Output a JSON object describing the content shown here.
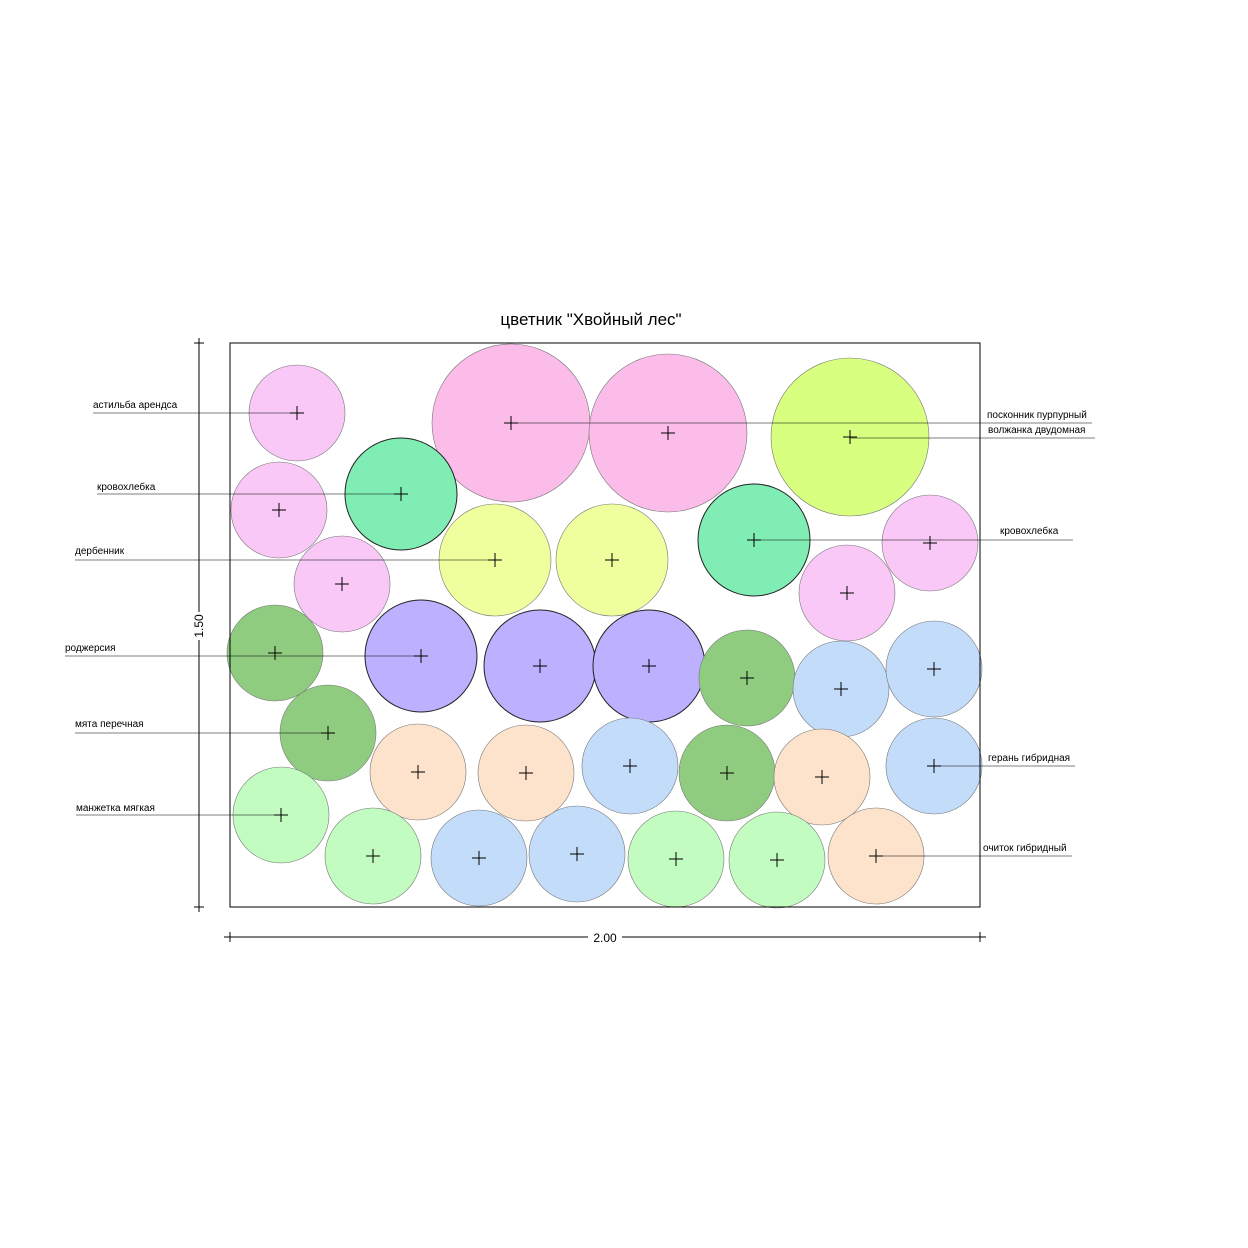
{
  "title": "цветник \"Хвойный лес\"",
  "labels": [
    "астильба арендса",
    "кровохлебка",
    "дербенник",
    "роджерсия",
    "мята перечная",
    "манжетка мягкая",
    "посконник пурпурный",
    "волжанка двудомная",
    "кровохлебка",
    "герань гибридная",
    "очиток гибридный"
  ],
  "dimensions": {
    "width": "2.00",
    "height": "1.50"
  }
}
